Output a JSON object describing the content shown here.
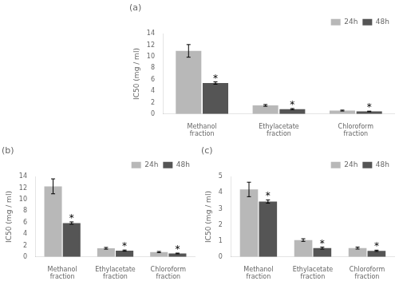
{
  "chart_data": [
    {
      "type": "bar",
      "title": "(a)",
      "categories": [
        "Methanol\nfraction",
        "Ethylacetate\nfraction",
        "Chloroform\nfraction"
      ],
      "series": [
        {
          "name": "24h",
          "color": "#b8b8b8",
          "values": [
            11.0,
            1.5,
            0.6
          ],
          "errors": [
            1.1,
            0.15,
            0.08
          ]
        },
        {
          "name": "48h",
          "color": "#555555",
          "values": [
            5.4,
            0.85,
            0.45
          ],
          "errors": [
            0.2,
            0.1,
            0.05
          ]
        }
      ],
      "y_label": "IC50 (mg / ml)",
      "ylim": [
        0,
        14
      ],
      "yticks": [
        0,
        2,
        4,
        6,
        8,
        10,
        12,
        14
      ],
      "annotations": [
        {
          "text": "*",
          "series": "48h",
          "category": "Methanol\nfraction"
        },
        {
          "text": "*",
          "series": "48h",
          "category": "Ethylacetate\nfraction"
        },
        {
          "text": "*",
          "series": "48h",
          "category": "Chloroform\nfraction"
        }
      ],
      "legend": "upper right",
      "grid": false
    },
    {
      "type": "bar",
      "title": "(b)",
      "categories": [
        "Methanol\nfraction",
        "Ethylacetate\nfraction",
        "Chloroform\nfraction"
      ],
      "series": [
        {
          "name": "24h",
          "color": "#b8b8b8",
          "values": [
            12.3,
            1.5,
            0.85
          ],
          "errors": [
            1.3,
            0.15,
            0.1
          ]
        },
        {
          "name": "48h",
          "color": "#555555",
          "values": [
            5.9,
            1.1,
            0.6
          ],
          "errors": [
            0.2,
            0.1,
            0.06
          ]
        }
      ],
      "y_label": "IC50 (mg / ml)",
      "ylim": [
        0,
        14
      ],
      "yticks": [
        0,
        2,
        4,
        6,
        8,
        10,
        12,
        14
      ],
      "annotations": [
        {
          "text": "*",
          "series": "48h",
          "category": "Methanol\nfraction"
        },
        {
          "text": "*",
          "series": "48h",
          "category": "Ethylacetate\nfraction"
        },
        {
          "text": "*",
          "series": "48h",
          "category": "Chloroform\nfraction"
        }
      ],
      "legend": "upper right",
      "grid": false
    },
    {
      "type": "bar",
      "title": "(c)",
      "categories": [
        "Methanol\nfraction",
        "Ethylacetate\nfraction",
        "Chloroform\nfraction"
      ],
      "series": [
        {
          "name": "24h",
          "color": "#b8b8b8",
          "values": [
            4.2,
            1.05,
            0.55
          ],
          "errors": [
            0.45,
            0.08,
            0.06
          ]
        },
        {
          "name": "48h",
          "color": "#555555",
          "values": [
            3.45,
            0.55,
            0.38
          ],
          "errors": [
            0.1,
            0.06,
            0.04
          ]
        }
      ],
      "y_label": "IC50 (mg / ml)",
      "ylim": [
        0,
        5
      ],
      "yticks": [
        0,
        1,
        2,
        3,
        4,
        5
      ],
      "annotations": [
        {
          "text": "*",
          "series": "48h",
          "category": "Methanol\nfraction"
        },
        {
          "text": "*",
          "series": "48h",
          "category": "Ethylacetate\nfraction"
        },
        {
          "text": "*",
          "series": "48h",
          "category": "Chloroform\nfraction"
        }
      ],
      "legend": "upper right",
      "grid": false
    }
  ]
}
